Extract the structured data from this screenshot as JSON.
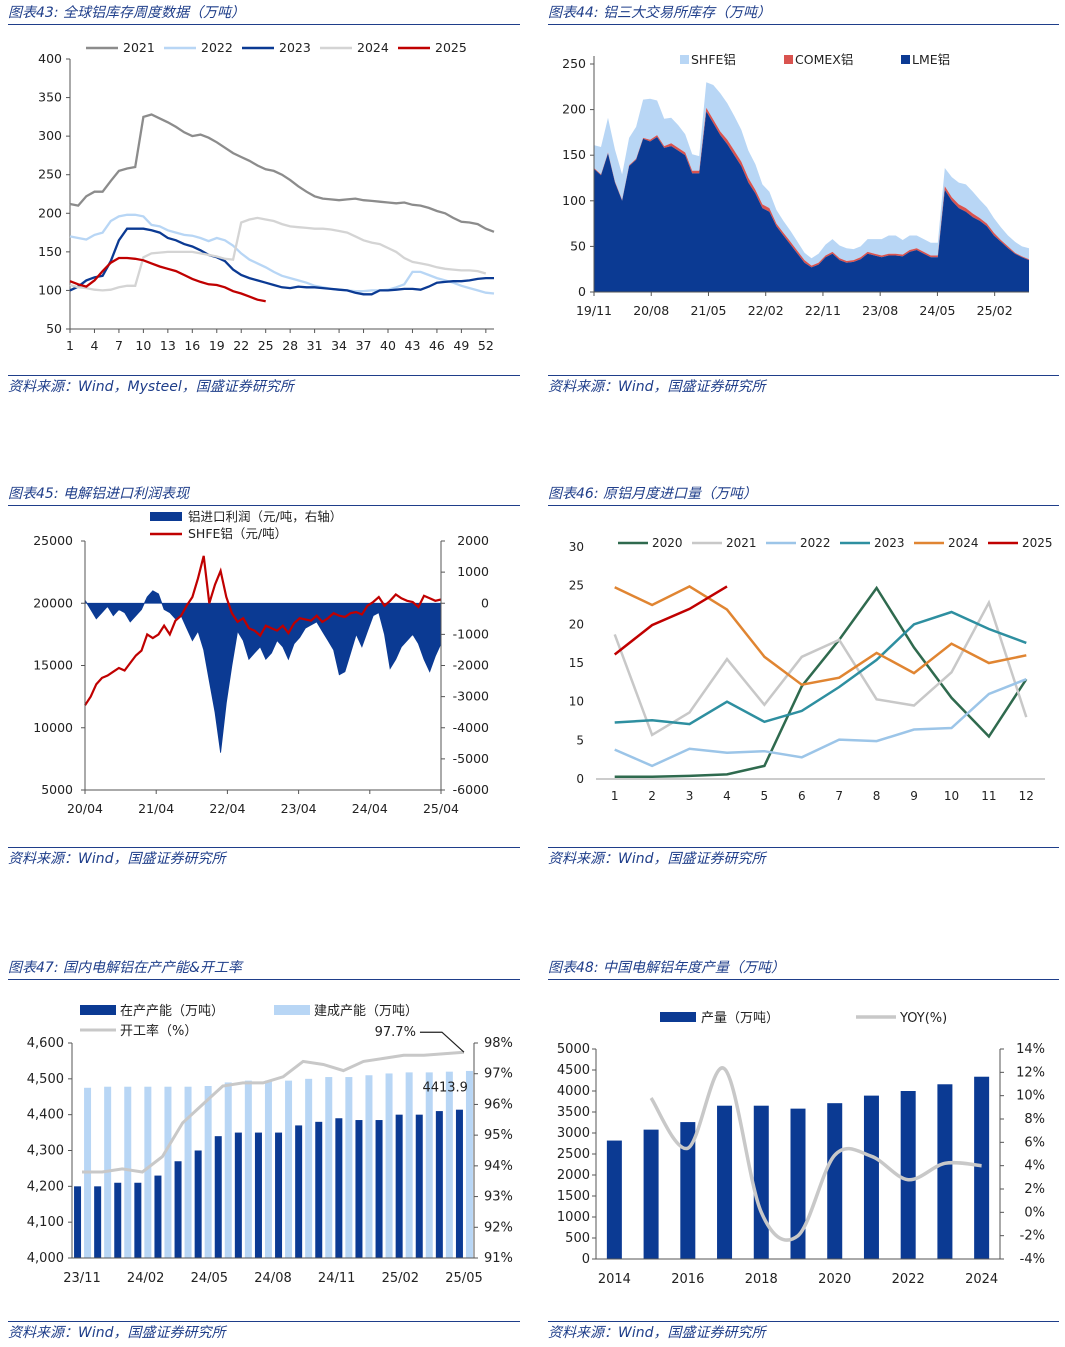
{
  "panels": [
    {
      "title": "图表43: 全球铝库存周度数据（万吨）",
      "source": "资料来源：Wind，Mysteel，国盛证券研究所"
    },
    {
      "title": "图表44: 铝三大交易所库存（万吨）",
      "source": "资料来源：Wind，国盛证券研究所"
    },
    {
      "title": "图表45: 电解铝进口利润表现",
      "source": "资料来源：Wind，国盛证券研究所"
    },
    {
      "title": "图表46: 原铝月度进口量（万吨）",
      "source": "资料来源：Wind，国盛证券研究所"
    },
    {
      "title": "图表47: 国内电解铝在产产能&开工率",
      "source": "资料来源：Wind，国盛证券研究所"
    },
    {
      "title": "图表48: 中国电解铝年度产量（万吨）",
      "source": "资料来源：Wind，国盛证券研究所"
    }
  ],
  "colors": {
    "navy": "#0b3a93",
    "lightblue": "#b8d6f5",
    "gray": "#8c8c8c",
    "lightgray": "#d4d4d4",
    "red": "#c00000",
    "teal": "#2e8fa0",
    "orange": "#e08532",
    "darkgreen": "#2f6a4e"
  },
  "chart_data": [
    {
      "type": "line",
      "title": "全球铝库存周度数据（万吨）",
      "xlabel": "",
      "ylabel": "",
      "x_ticks": [
        "1",
        "4",
        "7",
        "10",
        "13",
        "16",
        "19",
        "22",
        "25",
        "28",
        "31",
        "34",
        "37",
        "40",
        "43",
        "46",
        "49",
        "52"
      ],
      "y_ticks": [
        "400",
        "350",
        "300",
        "250",
        "200",
        "150",
        "100",
        "50"
      ],
      "ylim": [
        50,
        400
      ],
      "series": [
        {
          "name": "2021",
          "color": "#8c8c8c",
          "values": [
            212,
            210,
            222,
            228,
            228,
            242,
            255,
            258,
            260,
            325,
            328,
            323,
            318,
            312,
            305,
            300,
            302,
            298,
            292,
            285,
            278,
            273,
            268,
            262,
            257,
            255,
            250,
            243,
            235,
            228,
            222,
            219,
            218,
            217,
            218,
            219,
            217,
            216,
            215,
            214,
            213,
            214,
            211,
            210,
            207,
            203,
            200,
            194,
            189,
            188,
            186,
            180,
            176
          ]
        },
        {
          "name": "2022",
          "color": "#b8d6f5",
          "values": [
            170,
            168,
            166,
            172,
            175,
            190,
            196,
            198,
            198,
            196,
            185,
            183,
            178,
            175,
            172,
            171,
            168,
            164,
            168,
            165,
            158,
            148,
            140,
            135,
            130,
            124,
            119,
            116,
            113,
            110,
            106,
            104,
            102,
            101,
            100,
            99,
            99,
            100,
            100,
            101,
            104,
            108,
            124,
            124,
            120,
            116,
            113,
            110,
            106,
            103,
            100,
            97,
            96
          ]
        },
        {
          "name": "2023",
          "color": "#0b3a93",
          "values": [
            100,
            105,
            113,
            117,
            119,
            138,
            165,
            180,
            180,
            180,
            178,
            175,
            168,
            165,
            160,
            157,
            152,
            146,
            143,
            138,
            127,
            120,
            116,
            113,
            110,
            107,
            104,
            103,
            105,
            104,
            104,
            103,
            102,
            101,
            100,
            97,
            95,
            95,
            100,
            100,
            101,
            102,
            102,
            101,
            105,
            110,
            111,
            112,
            112,
            113,
            115,
            116,
            116
          ]
        },
        {
          "name": "2024",
          "color": "#d4d4d4",
          "values": [
            107,
            104,
            103,
            101,
            100,
            101,
            104,
            106,
            106,
            143,
            148,
            149,
            150,
            150,
            150,
            150,
            148,
            146,
            144,
            141,
            140,
            188,
            192,
            194,
            192,
            190,
            186,
            183,
            182,
            181,
            180,
            180,
            179,
            177,
            175,
            170,
            165,
            162,
            160,
            155,
            150,
            142,
            137,
            135,
            133,
            130,
            128,
            127,
            126,
            126,
            125,
            122
          ]
        },
        {
          "name": "2025",
          "color": "#c00000",
          "values": [
            112,
            108,
            105,
            113,
            125,
            136,
            142,
            142,
            141,
            139,
            135,
            131,
            128,
            125,
            120,
            115,
            111,
            108,
            107,
            104,
            99,
            96,
            92,
            88,
            86
          ]
        }
      ]
    },
    {
      "type": "area",
      "title": "铝三大交易所库存（万吨）",
      "x_ticks": [
        "19/11",
        "20/08",
        "21/05",
        "22/02",
        "22/11",
        "23/08",
        "24/05",
        "25/02"
      ],
      "y_ticks": [
        "250",
        "200",
        "150",
        "100",
        "50",
        "0"
      ],
      "ylim": [
        0,
        250
      ],
      "series": [
        {
          "name": "LME铝",
          "color": "#0b3a93",
          "values": [
            135,
            128,
            152,
            120,
            100,
            138,
            145,
            168,
            165,
            170,
            158,
            160,
            155,
            150,
            130,
            130,
            198,
            185,
            172,
            162,
            150,
            138,
            120,
            108,
            92,
            88,
            72,
            62,
            52,
            42,
            32,
            27,
            30,
            38,
            42,
            35,
            32,
            33,
            36,
            42,
            40,
            38,
            40,
            40,
            39,
            44,
            46,
            42,
            38,
            38,
            112,
            100,
            92,
            88,
            82,
            78,
            72,
            62,
            55,
            48,
            42,
            38,
            35
          ]
        },
        {
          "name": "COMEX铝",
          "color": "#d9534f",
          "values": [
            1,
            1,
            1,
            1,
            1,
            1,
            1,
            1,
            2,
            2,
            2,
            3,
            3,
            3,
            3,
            3,
            4,
            4,
            4,
            5,
            5,
            5,
            5,
            4,
            4,
            4,
            3,
            3,
            3,
            3,
            3,
            2,
            2,
            2,
            2,
            2,
            2,
            2,
            2,
            2,
            2,
            2,
            2,
            2,
            2,
            2,
            2,
            2,
            2,
            2,
            4,
            4,
            4,
            4,
            4,
            3,
            3,
            3,
            2,
            2,
            1,
            1,
            1
          ]
        },
        {
          "name": "SHFE铝",
          "color": "#b8d6f5",
          "values": [
            25,
            30,
            38,
            35,
            28,
            30,
            35,
            42,
            45,
            38,
            30,
            28,
            25,
            20,
            18,
            16,
            28,
            38,
            42,
            40,
            38,
            35,
            30,
            28,
            22,
            18,
            15,
            13,
            12,
            10,
            8,
            8,
            10,
            12,
            14,
            14,
            14,
            12,
            12,
            14,
            16,
            18,
            20,
            20,
            16,
            16,
            14,
            14,
            14,
            14,
            20,
            22,
            24,
            26,
            24,
            20,
            18,
            16,
            14,
            12,
            12,
            11,
            12
          ]
        }
      ]
    },
    {
      "type": "combo",
      "title": "电解铝进口利润表现",
      "x_ticks": [
        "20/04",
        "21/04",
        "22/04",
        "23/04",
        "24/04",
        "25/04"
      ],
      "y_ticks_left": [
        "25000",
        "20000",
        "15000",
        "10000",
        "5000"
      ],
      "y_ticks_right": [
        "2000",
        "1000",
        "0",
        "-1000",
        "-2000",
        "-3000",
        "-4000",
        "-5000",
        "-6000"
      ],
      "ylim_left": [
        5000,
        25000
      ],
      "ylim_right": [
        -6000,
        2000
      ],
      "legend": [
        "铝进口利润（元/吨，右轴）",
        "SHFE铝（元/吨）"
      ],
      "series": [
        {
          "name": "铝进口利润（元/吨，右轴）",
          "color": "#0b3a93",
          "values": [
            100,
            -200,
            -500,
            -300,
            -100,
            -400,
            -200,
            -300,
            -600,
            -400,
            -200,
            200,
            400,
            300,
            -200,
            -300,
            -500,
            -400,
            -800,
            -1200,
            -900,
            -1500,
            -2500,
            -3500,
            -4800,
            -3200,
            -2000,
            -900,
            -1200,
            -1800,
            -1600,
            -1400,
            -1800,
            -1600,
            -1200,
            -1400,
            -1800,
            -1300,
            -1100,
            -800,
            -700,
            -600,
            -900,
            -1200,
            -1500,
            -2300,
            -2200,
            -1600,
            -1000,
            -1400,
            -900,
            -400,
            -300,
            -1000,
            -2100,
            -1800,
            -1400,
            -1200,
            -1000,
            -1300,
            -1800,
            -2200,
            -1700,
            -1300
          ]
        },
        {
          "name": "SHFE铝（元/吨）",
          "color": "#c00000",
          "values": [
            11800,
            12500,
            13500,
            14000,
            14200,
            14500,
            14800,
            14600,
            15200,
            15800,
            16200,
            17500,
            17200,
            17500,
            18200,
            17500,
            18600,
            19000,
            19800,
            20500,
            22000,
            23800,
            20000,
            21500,
            22600,
            20500,
            19200,
            18500,
            18800,
            18000,
            17800,
            17400,
            18200,
            18000,
            17800,
            18200,
            17600,
            18400,
            18800,
            18700,
            18600,
            19000,
            18500,
            18800,
            19200,
            19000,
            18900,
            19200,
            19300,
            19100,
            19800,
            20100,
            20500,
            19800,
            20200,
            20700,
            20400,
            20200,
            20100,
            19700,
            20600,
            20400,
            20200,
            20300
          ]
        }
      ]
    },
    {
      "type": "line",
      "title": "原铝月度进口量（万吨）",
      "x_ticks": [
        "1",
        "2",
        "3",
        "4",
        "5",
        "6",
        "7",
        "8",
        "9",
        "10",
        "11",
        "12"
      ],
      "y_ticks": [
        "30",
        "25",
        "20",
        "15",
        "10",
        "5",
        "0"
      ],
      "ylim": [
        0,
        30
      ],
      "series": [
        {
          "name": "2020",
          "color": "#2f6a4e",
          "values": [
            0.3,
            0.3,
            0.4,
            0.6,
            1.7,
            12.0,
            18.0,
            24.7,
            17.0,
            10.5,
            5.5,
            12.9
          ]
        },
        {
          "name": "2021",
          "color": "#c8c8c8",
          "values": [
            18.7,
            5.7,
            8.6,
            15.5,
            9.6,
            15.8,
            18.0,
            10.3,
            9.5,
            13.8,
            22.8,
            8.0
          ]
        },
        {
          "name": "2022",
          "color": "#9cc5e8",
          "values": [
            3.8,
            1.7,
            3.9,
            3.4,
            3.6,
            2.8,
            5.1,
            4.9,
            6.4,
            6.6,
            11.0,
            12.9
          ]
        },
        {
          "name": "2023",
          "color": "#2e8fa0",
          "values": [
            7.3,
            7.6,
            7.1,
            10.0,
            7.4,
            8.8,
            11.9,
            15.4,
            20.0,
            21.6,
            19.4,
            17.6
          ]
        },
        {
          "name": "2024",
          "color": "#e08532",
          "values": [
            24.8,
            22.5,
            24.9,
            21.9,
            15.8,
            12.2,
            13.1,
            16.3,
            13.7,
            17.5,
            15.0,
            16.0
          ]
        },
        {
          "name": "2025",
          "color": "#c00000",
          "values": [
            16.1,
            19.9,
            22.0,
            24.9
          ]
        }
      ]
    },
    {
      "type": "combo",
      "title": "国内电解铝在产产能&开工率",
      "x_ticks": [
        "23/11",
        "24/02",
        "24/05",
        "24/08",
        "24/11",
        "25/02",
        "25/05"
      ],
      "y_ticks_left": [
        "4,600",
        "4,500",
        "4,400",
        "4,300",
        "4,200",
        "4,100",
        "4,000"
      ],
      "y_ticks_right": [
        "98%",
        "97%",
        "96%",
        "95%",
        "94%",
        "93%",
        "92%",
        "91%"
      ],
      "ylim_left": [
        4000,
        4600
      ],
      "ylim_right": [
        91,
        98
      ],
      "annotations": [
        "97.7%",
        "4413.9"
      ],
      "series": [
        {
          "name": "在产产能（万吨）",
          "color": "#0b3a93",
          "values": [
            4200,
            4200,
            4210,
            4210,
            4230,
            4270,
            4300,
            4340,
            4350,
            4350,
            4350,
            4370,
            4380,
            4390,
            4385,
            4385,
            4400,
            4400,
            4410,
            4413.9
          ]
        },
        {
          "name": "建成产能（万吨）",
          "color": "#b8d6f5",
          "values": [
            4475,
            4478,
            4478,
            4478,
            4478,
            4478,
            4480,
            4490,
            4495,
            4495,
            4495,
            4500,
            4505,
            4505,
            4510,
            4515,
            4518,
            4518,
            4520,
            4522
          ]
        },
        {
          "name": "开工率（%）",
          "color": "#c8c8c8",
          "values": [
            93.8,
            93.8,
            93.9,
            93.8,
            94.3,
            95.4,
            96.0,
            96.6,
            96.7,
            96.7,
            96.9,
            97.4,
            97.3,
            97.1,
            97.4,
            97.5,
            97.6,
            97.6,
            97.65,
            97.7
          ]
        }
      ]
    },
    {
      "type": "combo",
      "title": "中国电解铝年度产量（万吨）",
      "x_ticks": [
        "2014",
        "2016",
        "2018",
        "2020",
        "2022",
        "2024"
      ],
      "y_ticks_left": [
        "5000",
        "4500",
        "4000",
        "3500",
        "3000",
        "2500",
        "2000",
        "1500",
        "1000",
        "500",
        "0"
      ],
      "y_ticks_right": [
        "14%",
        "12%",
        "10%",
        "8%",
        "6%",
        "4%",
        "2%",
        "0%",
        "-2%",
        "-4%"
      ],
      "ylim_left": [
        0,
        5000
      ],
      "ylim_right": [
        -4,
        14
      ],
      "categories": [
        "2014",
        "2015",
        "2016",
        "2017",
        "2018",
        "2019",
        "2020",
        "2021",
        "2022",
        "2023",
        "2024"
      ],
      "series": [
        {
          "name": "产量（万吨）",
          "color": "#0b3a93",
          "values": [
            2820,
            3080,
            3260,
            3650,
            3650,
            3580,
            3710,
            3890,
            4000,
            4160,
            4340
          ]
        },
        {
          "name": "YOY(%)",
          "color": "#c8c8c8",
          "values": [
            null,
            9.8,
            5.5,
            12.3,
            0,
            -2,
            4.9,
            4.8,
            2.8,
            4.2,
            4.0
          ]
        }
      ]
    }
  ]
}
